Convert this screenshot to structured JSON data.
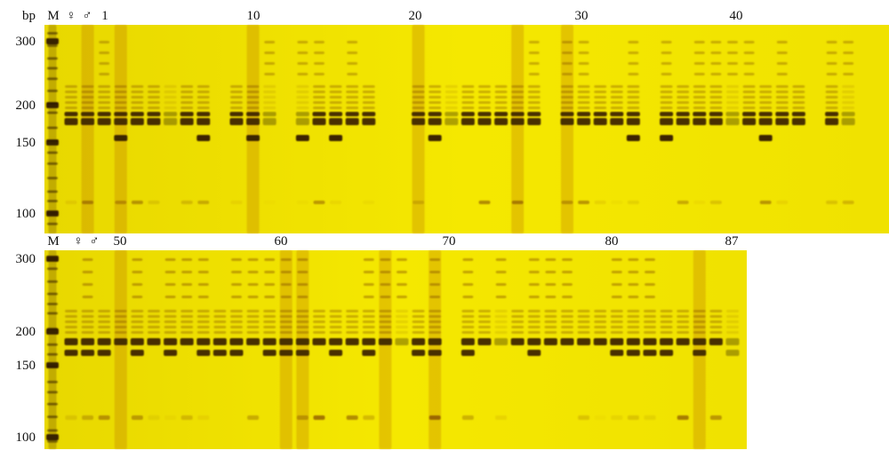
{
  "panels": [
    {
      "unit": "bp",
      "lane_labels": [
        "M",
        "♀",
        "♂",
        "1",
        "10",
        "20",
        "30",
        "40"
      ],
      "size_labels": [
        "300",
        "200",
        "150",
        "100"
      ]
    },
    {
      "lane_labels": [
        "M",
        "♀",
        "♂",
        "50",
        "60",
        "70",
        "80",
        "87"
      ],
      "size_labels": [
        "300",
        "200",
        "150",
        "100"
      ]
    }
  ]
}
